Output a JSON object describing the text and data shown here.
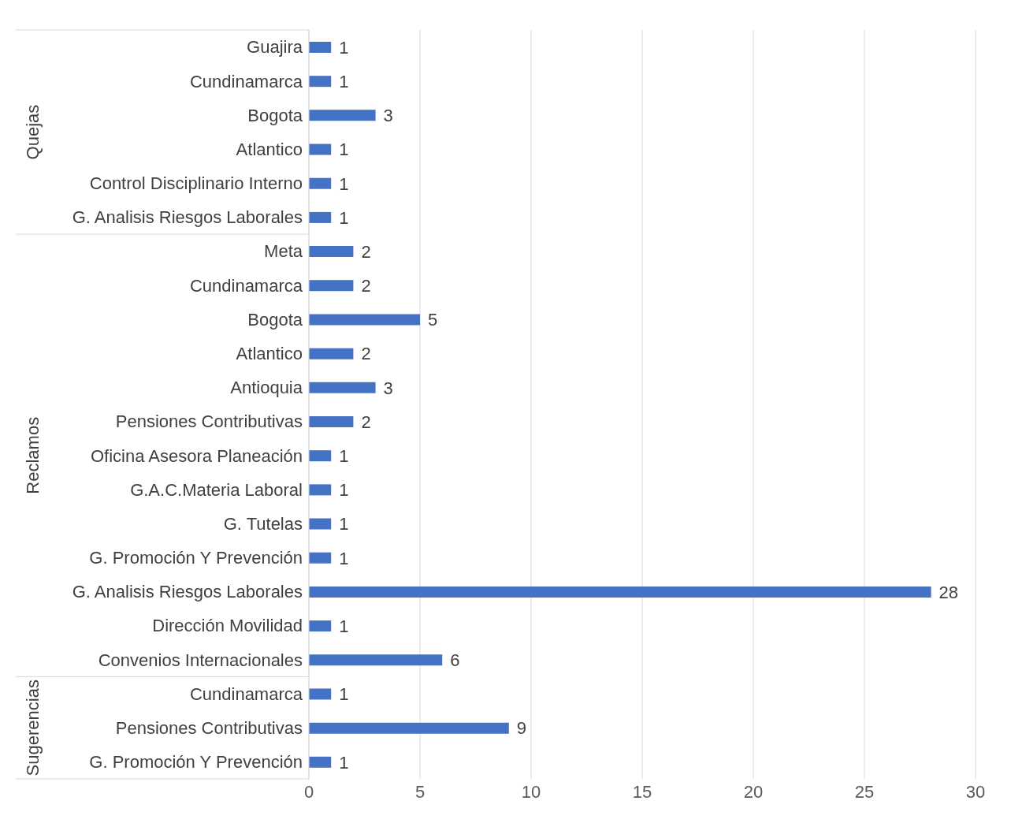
{
  "chart_data": {
    "type": "bar",
    "orientation": "horizontal",
    "categories": [
      "Guajira",
      "Cundinamarca",
      "Bogota",
      "Atlantico",
      "Control Disciplinario Interno",
      "G. Analisis Riesgos Laborales",
      "Meta",
      "Cundinamarca",
      "Bogota",
      "Atlantico",
      "Antioquia",
      "Pensiones Contributivas",
      "Oficina Asesora Planeación",
      "G.A.C.Materia Laboral",
      "G. Tutelas",
      "G. Promoción Y Prevención",
      "G. Analisis Riesgos Laborales",
      "Dirección Movilidad",
      "Convenios Internacionales",
      "Cundinamarca",
      "Pensiones Contributivas",
      "G. Promoción Y Prevención"
    ],
    "values": [
      1,
      1,
      3,
      1,
      1,
      1,
      2,
      2,
      5,
      2,
      3,
      2,
      1,
      1,
      1,
      1,
      28,
      1,
      6,
      1,
      9,
      1
    ],
    "color": "#4472c4",
    "xlim": [
      0,
      30
    ],
    "xticks": [
      0,
      5,
      10,
      15,
      20,
      25,
      30
    ],
    "grid": "x",
    "data_labels": true,
    "annotations": [
      "Quejas",
      "Reclamos",
      "Sugerencias"
    ]
  }
}
